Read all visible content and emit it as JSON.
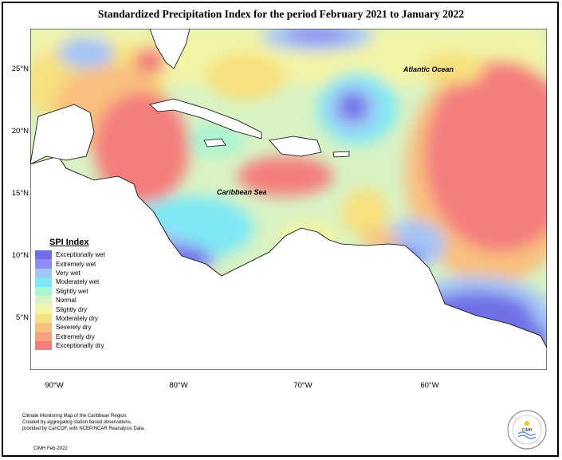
{
  "title": "Standardized Precipitation Index for the period February 2021 to January 2022",
  "map": {
    "labels": {
      "atlantic": "Atlantic Ocean",
      "caribbean": "Caribbean Sea"
    },
    "lat_ticks": [
      "25°N",
      "20°N",
      "15°N",
      "10°N",
      "5°N"
    ],
    "lon_ticks": [
      "90°W",
      "80°W",
      "70°W",
      "60°W"
    ]
  },
  "legend": {
    "title": "SPI Index",
    "items": [
      {
        "label": "Exceptionally wet",
        "color": "#6f6fe6"
      },
      {
        "label": "Extremely wet",
        "color": "#8e8ef2"
      },
      {
        "label": "Very wet",
        "color": "#a4c4f6"
      },
      {
        "label": "Moderately wet",
        "color": "#7ee8f4"
      },
      {
        "label": "Slightly wet",
        "color": "#aaf4d2"
      },
      {
        "label": "Normal",
        "color": "#d8f2c4"
      },
      {
        "label": "Slightly dry",
        "color": "#f2f4a6"
      },
      {
        "label": "Moderately dry",
        "color": "#f7e07e"
      },
      {
        "label": "Severely dry",
        "color": "#f8c07e"
      },
      {
        "label": "Extremely dry",
        "color": "#f7a07e"
      },
      {
        "label": "Exceptionally dry",
        "color": "#f47e7e"
      }
    ]
  },
  "footer": {
    "note_line1": "Climate Monitoring Map of the Caribbean Region.",
    "note_line2": "Created by aggregating station based observations,",
    "note_line3": "provided by CariCOF, with NCEP/NCAR Reanalysis Data.",
    "credit": "CIMH Feb-2022",
    "logo_text": "CIMH"
  }
}
